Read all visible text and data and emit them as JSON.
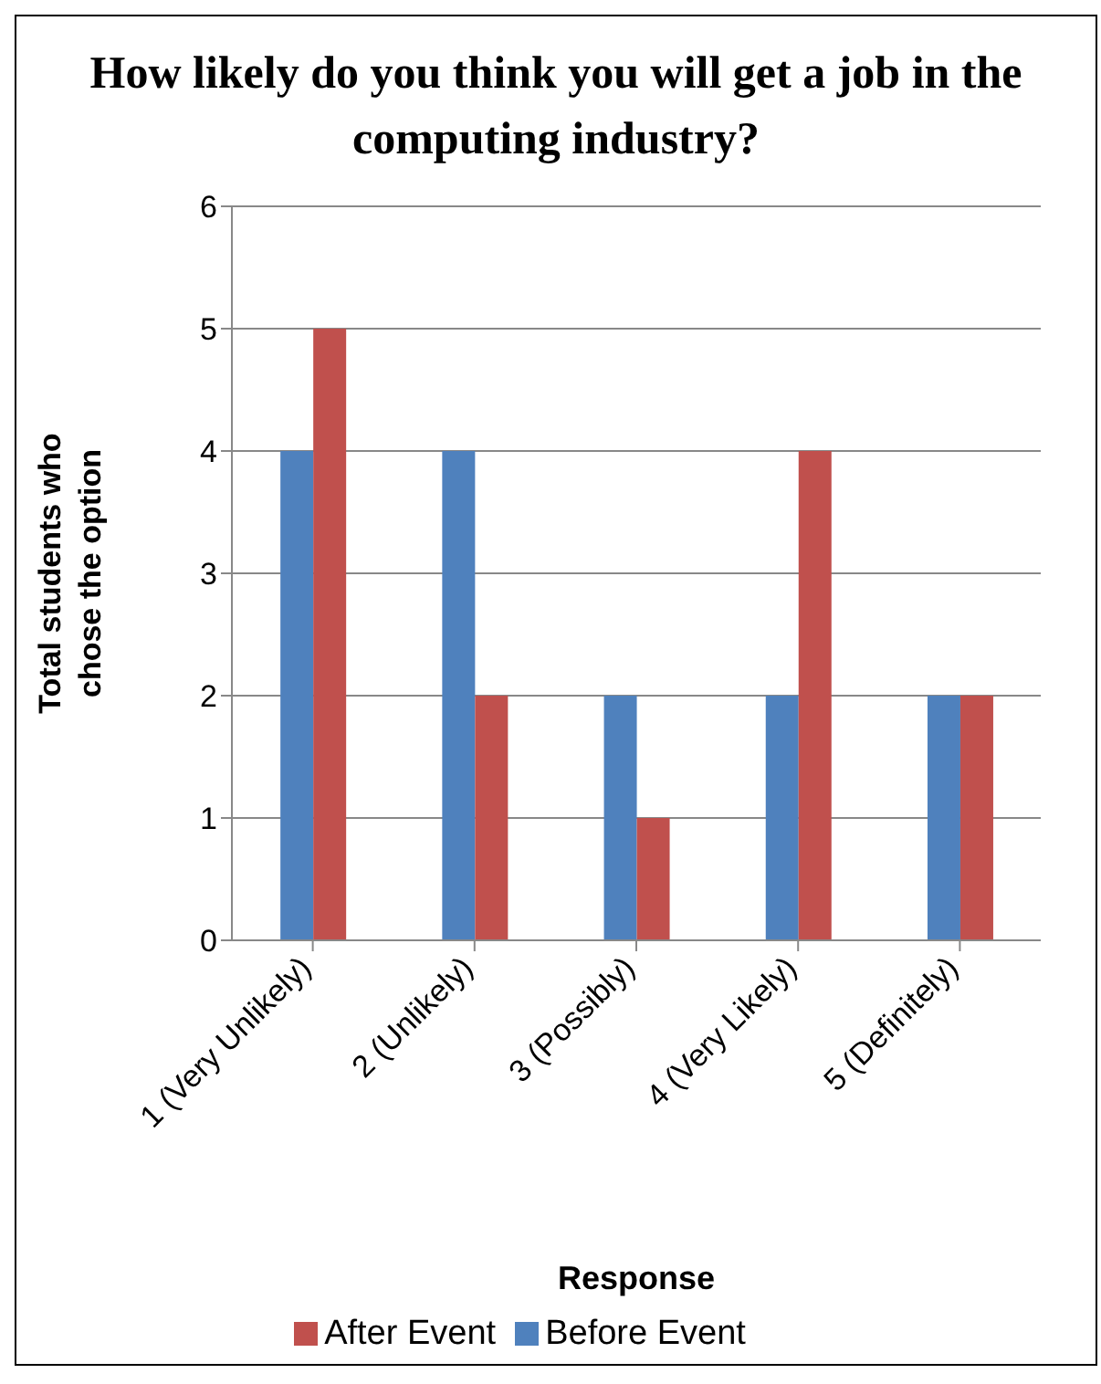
{
  "chart_data": {
    "type": "bar",
    "title": "How likely do you think you will get a job in the computing industry?",
    "xlabel": "Response",
    "ylabel": "Total students who chose the option",
    "categories": [
      "1 (Very Unlikely)",
      "2 (Unlikely)",
      "3 (Possibly)",
      "4 (Very Likely)",
      "5 (Definitely)"
    ],
    "series": [
      {
        "name": "Before Event",
        "color": "#4f81bd",
        "values": [
          4,
          4,
          2,
          2,
          2
        ]
      },
      {
        "name": "After Event",
        "color": "#c0504d",
        "values": [
          5,
          2,
          1,
          4,
          2
        ]
      }
    ],
    "ylim": [
      0,
      6
    ],
    "yticks": [
      0,
      1,
      2,
      3,
      4,
      5,
      6
    ],
    "grid": "y",
    "legend": "bottom"
  }
}
